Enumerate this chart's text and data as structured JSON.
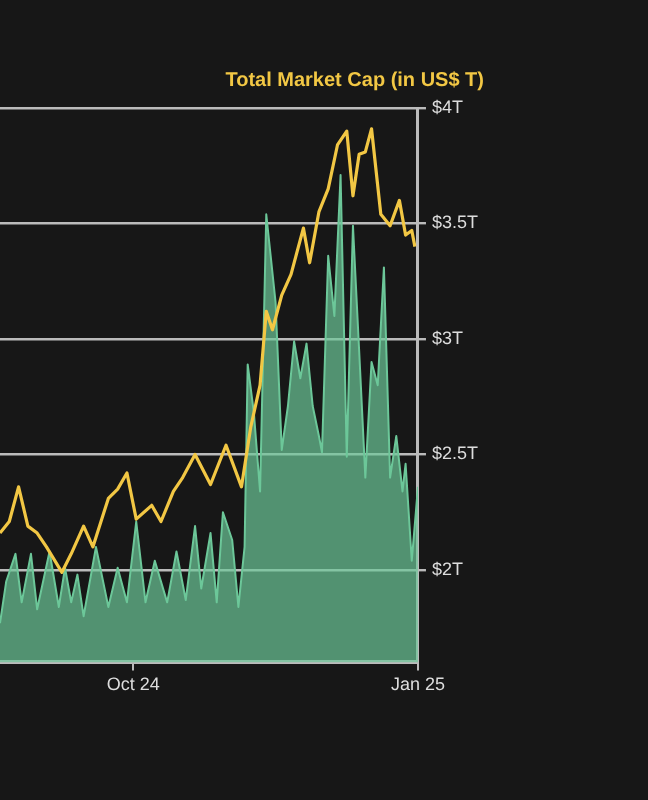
{
  "chart_data": {
    "type": "line",
    "title": "Total Market Cap (in US$ T)",
    "xlim": [
      "2024-08-19",
      "2025-01-01"
    ],
    "xticks": [
      {
        "value": "2024-10-01",
        "label": "Oct 24"
      },
      {
        "value": "2025-01-01",
        "label": "Jan 25"
      }
    ],
    "ylim": [
      1.6,
      4
    ],
    "yticks": [
      {
        "value": 2,
        "label": "$2T"
      },
      {
        "value": 2.5,
        "label": "$2.5T"
      },
      {
        "value": 3,
        "label": "$3T"
      },
      {
        "value": 3.5,
        "label": "$3.5T"
      },
      {
        "value": 4,
        "label": "$4T"
      }
    ],
    "grid": "y",
    "legend": false,
    "marker": "none",
    "series": [
      {
        "type": "area",
        "color": "#6cc799",
        "x": [
          "2024-08-19",
          "2024-08-21",
          "2024-08-24",
          "2024-08-26",
          "2024-08-29",
          "2024-08-31",
          "2024-09-04",
          "2024-09-07",
          "2024-09-09",
          "2024-09-11",
          "2024-09-13",
          "2024-09-15",
          "2024-09-19",
          "2024-09-23",
          "2024-09-26",
          "2024-09-29",
          "2024-10-02",
          "2024-10-05",
          "2024-10-08",
          "2024-10-12",
          "2024-10-15",
          "2024-10-18",
          "2024-10-21",
          "2024-10-23",
          "2024-10-26",
          "2024-10-28",
          "2024-10-30",
          "2024-11-02",
          "2024-11-04",
          "2024-11-06",
          "2024-11-07",
          "2024-11-09",
          "2024-11-11",
          "2024-11-13",
          "2024-11-16",
          "2024-11-18",
          "2024-11-20",
          "2024-11-22",
          "2024-11-24",
          "2024-11-26",
          "2024-11-28",
          "2024-11-30",
          "2024-12-01",
          "2024-12-03",
          "2024-12-05",
          "2024-12-07",
          "2024-12-09",
          "2024-12-11",
          "2024-12-13",
          "2024-12-15",
          "2024-12-17",
          "2024-12-19",
          "2024-12-21",
          "2024-12-23",
          "2024-12-25",
          "2024-12-27",
          "2024-12-28",
          "2024-12-30",
          "2025-01-01"
        ],
        "values": [
          1.77,
          1.95,
          2.07,
          1.86,
          2.07,
          1.83,
          2.08,
          1.84,
          2.01,
          1.86,
          1.98,
          1.8,
          2.1,
          1.84,
          2.01,
          1.86,
          2.21,
          1.86,
          2.04,
          1.86,
          2.08,
          1.87,
          2.19,
          1.92,
          2.16,
          1.86,
          2.25,
          2.13,
          1.84,
          2.1,
          2.89,
          2.68,
          2.34,
          3.54,
          3.16,
          2.52,
          2.71,
          2.99,
          2.83,
          2.98,
          2.71,
          2.58,
          2.51,
          3.36,
          3.1,
          3.71,
          2.49,
          3.49,
          2.95,
          2.4,
          2.9,
          2.8,
          3.31,
          2.4,
          2.58,
          2.34,
          2.46,
          2.04,
          2.36
        ]
      },
      {
        "color": "#f2c744",
        "x": [
          "2024-08-19",
          "2024-08-22",
          "2024-08-25",
          "2024-08-28",
          "2024-08-31",
          "2024-09-03",
          "2024-09-08",
          "2024-09-11",
          "2024-09-15",
          "2024-09-18",
          "2024-09-23",
          "2024-09-26",
          "2024-09-29",
          "2024-10-02",
          "2024-10-07",
          "2024-10-10",
          "2024-10-14",
          "2024-10-17",
          "2024-10-21",
          "2024-10-26",
          "2024-10-31",
          "2024-11-05",
          "2024-11-08",
          "2024-11-11",
          "2024-11-13",
          "2024-11-15",
          "2024-11-18",
          "2024-11-21",
          "2024-11-25",
          "2024-11-27",
          "2024-11-30",
          "2024-12-03",
          "2024-12-06",
          "2024-12-09",
          "2024-12-11",
          "2024-12-13",
          "2024-12-15",
          "2024-12-17",
          "2024-12-20",
          "2024-12-23",
          "2024-12-26",
          "2024-12-28",
          "2024-12-30",
          "2024-12-31"
        ],
        "values": [
          2.16,
          2.21,
          2.36,
          2.19,
          2.16,
          2.1,
          1.99,
          2.07,
          2.19,
          2.1,
          2.31,
          2.35,
          2.42,
          2.22,
          2.28,
          2.21,
          2.34,
          2.4,
          2.5,
          2.37,
          2.54,
          2.36,
          2.62,
          2.8,
          3.12,
          3.04,
          3.19,
          3.28,
          3.48,
          3.33,
          3.55,
          3.65,
          3.84,
          3.9,
          3.62,
          3.8,
          3.81,
          3.91,
          3.54,
          3.49,
          3.6,
          3.45,
          3.47,
          3.4
        ]
      }
    ]
  }
}
